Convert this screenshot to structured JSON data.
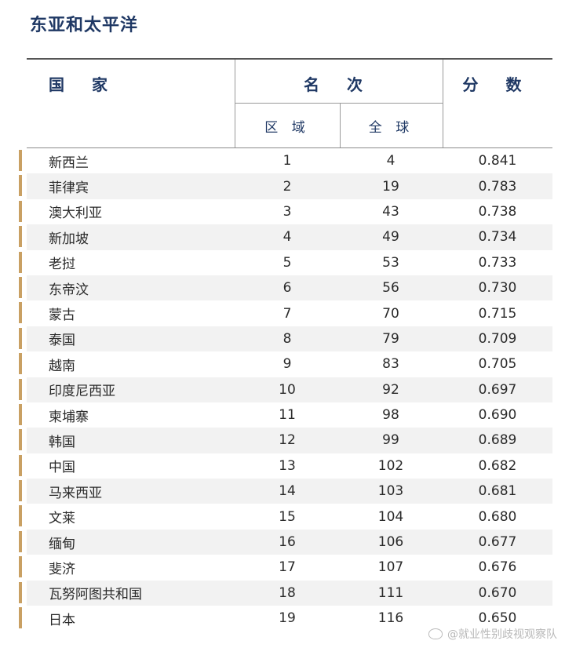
{
  "title": "东亚和太平洋",
  "header": {
    "country": "国 家",
    "rank": "名 次",
    "region": "区 域",
    "global": "全 球",
    "score": "分 数"
  },
  "rows": [
    {
      "country": "新西兰",
      "region": "1",
      "global": "4",
      "score": "0.841"
    },
    {
      "country": "菲律宾",
      "region": "2",
      "global": "19",
      "score": "0.783"
    },
    {
      "country": "澳大利亚",
      "region": "3",
      "global": "43",
      "score": "0.738"
    },
    {
      "country": "新加坡",
      "region": "4",
      "global": "49",
      "score": "0.734"
    },
    {
      "country": "老挝",
      "region": "5",
      "global": "53",
      "score": "0.733"
    },
    {
      "country": "东帝汶",
      "region": "6",
      "global": "56",
      "score": "0.730"
    },
    {
      "country": "蒙古",
      "region": "7",
      "global": "70",
      "score": "0.715"
    },
    {
      "country": "泰国",
      "region": "8",
      "global": "79",
      "score": "0.709"
    },
    {
      "country": "越南",
      "region": "9",
      "global": "83",
      "score": "0.705"
    },
    {
      "country": "印度尼西亚",
      "region": "10",
      "global": "92",
      "score": "0.697"
    },
    {
      "country": "柬埔寨",
      "region": "11",
      "global": "98",
      "score": "0.690"
    },
    {
      "country": "韩国",
      "region": "12",
      "global": "99",
      "score": "0.689"
    },
    {
      "country": "中国",
      "region": "13",
      "global": "102",
      "score": "0.682"
    },
    {
      "country": "马来西亚",
      "region": "14",
      "global": "103",
      "score": "0.681"
    },
    {
      "country": "文莱",
      "region": "15",
      "global": "104",
      "score": "0.680"
    },
    {
      "country": "缅甸",
      "region": "16",
      "global": "106",
      "score": "0.677"
    },
    {
      "country": "斐济",
      "region": "17",
      "global": "107",
      "score": "0.676"
    },
    {
      "country": "瓦努阿图共和国",
      "region": "18",
      "global": "111",
      "score": "0.670"
    },
    {
      "country": "日本",
      "region": "19",
      "global": "116",
      "score": "0.650"
    }
  ],
  "watermark": "@就业性别歧视观察队",
  "colors": {
    "title": "#1f3864",
    "accent_bar": "#c9a063",
    "alt_row": "#f2f2f2"
  }
}
